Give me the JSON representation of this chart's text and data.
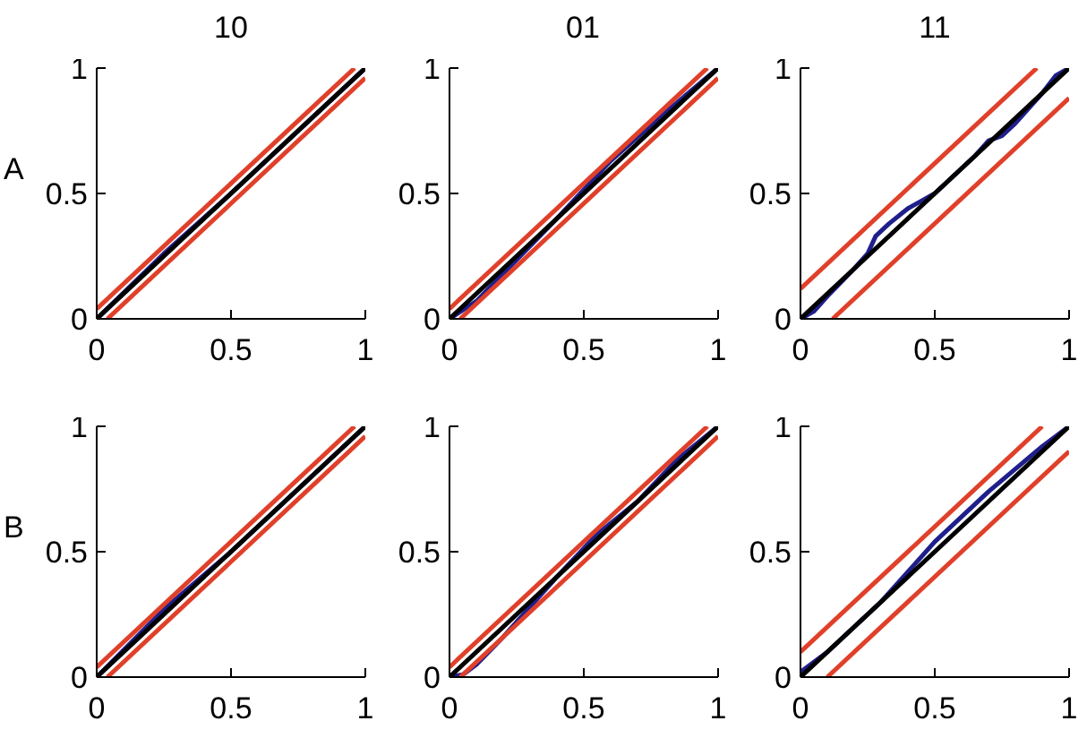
{
  "chart_data": [
    {
      "type": "line",
      "title": "10",
      "ylabel": "A",
      "xlim": [
        0,
        1
      ],
      "ylim": [
        0,
        1
      ],
      "xticks": [
        0,
        0.5,
        1
      ],
      "yticks": [
        0,
        0.5,
        1
      ],
      "grid": false,
      "marker": "none",
      "series": [
        {
          "color": "#1f1f8c",
          "x": [
            0,
            0.25,
            0.5,
            0.75,
            1
          ],
          "values": [
            0,
            0.26,
            0.5,
            0.75,
            1
          ]
        },
        {
          "color": "#e0402a",
          "x": [
            0,
            0.96
          ],
          "values": [
            0.04,
            1
          ]
        },
        {
          "color": "#e0402a",
          "x": [
            0.04,
            1
          ],
          "values": [
            0,
            0.96
          ]
        },
        {
          "color": "#000000",
          "x": [
            0,
            1
          ],
          "values": [
            0,
            1
          ]
        }
      ]
    },
    {
      "type": "line",
      "title": "01",
      "xlim": [
        0,
        1
      ],
      "ylim": [
        0,
        1
      ],
      "xticks": [
        0,
        0.5,
        1
      ],
      "yticks": [
        0,
        0.5,
        1
      ],
      "grid": false,
      "marker": "none",
      "series": [
        {
          "color": "#1f1f8c",
          "x": [
            0,
            0.1,
            0.2,
            0.4,
            0.6,
            0.8,
            1
          ],
          "values": [
            0,
            0.07,
            0.18,
            0.4,
            0.63,
            0.82,
            1
          ]
        },
        {
          "color": "#e0402a",
          "x": [
            0,
            0.96
          ],
          "values": [
            0.04,
            1
          ]
        },
        {
          "color": "#e0402a",
          "x": [
            0.04,
            1
          ],
          "values": [
            0,
            0.96
          ]
        },
        {
          "color": "#000000",
          "x": [
            0,
            1
          ],
          "values": [
            0,
            1
          ]
        }
      ]
    },
    {
      "type": "line",
      "title": "11",
      "xlim": [
        0,
        1
      ],
      "ylim": [
        0,
        1
      ],
      "xticks": [
        0,
        0.5,
        1
      ],
      "yticks": [
        0,
        0.5,
        1
      ],
      "grid": false,
      "marker": "none",
      "series": [
        {
          "color": "#1f1f8c",
          "x": [
            0,
            0.05,
            0.1,
            0.2,
            0.25,
            0.28,
            0.33,
            0.4,
            0.45,
            0.5,
            0.6,
            0.65,
            0.7,
            0.75,
            0.8,
            0.9,
            0.95,
            1
          ],
          "values": [
            0,
            0.03,
            0.09,
            0.2,
            0.26,
            0.33,
            0.38,
            0.44,
            0.47,
            0.5,
            0.6,
            0.65,
            0.71,
            0.73,
            0.78,
            0.9,
            0.97,
            1
          ]
        },
        {
          "color": "#e0402a",
          "x": [
            0,
            0.88
          ],
          "values": [
            0.12,
            1
          ]
        },
        {
          "color": "#e0402a",
          "x": [
            0.12,
            1
          ],
          "values": [
            0,
            0.88
          ]
        },
        {
          "color": "#000000",
          "x": [
            0,
            1
          ],
          "values": [
            0,
            1
          ]
        }
      ]
    },
    {
      "type": "line",
      "ylabel": "B",
      "xlim": [
        0,
        1
      ],
      "ylim": [
        0,
        1
      ],
      "xticks": [
        0,
        0.5,
        1
      ],
      "yticks": [
        0,
        0.5,
        1
      ],
      "grid": false,
      "marker": "none",
      "series": [
        {
          "color": "#1f1f8c",
          "x": [
            0,
            0.25,
            0.5,
            0.75,
            1
          ],
          "values": [
            0,
            0.27,
            0.5,
            0.75,
            1
          ]
        },
        {
          "color": "#e0402a",
          "x": [
            0,
            0.96
          ],
          "values": [
            0.04,
            1
          ]
        },
        {
          "color": "#e0402a",
          "x": [
            0.04,
            1
          ],
          "values": [
            0,
            0.96
          ]
        },
        {
          "color": "#000000",
          "x": [
            0,
            1
          ],
          "values": [
            0,
            1
          ]
        }
      ]
    },
    {
      "type": "line",
      "xlim": [
        0,
        1
      ],
      "ylim": [
        0,
        1
      ],
      "xticks": [
        0,
        0.5,
        1
      ],
      "yticks": [
        0,
        0.5,
        1
      ],
      "grid": false,
      "marker": "none",
      "series": [
        {
          "color": "#1f1f8c",
          "x": [
            0,
            0.05,
            0.1,
            0.2,
            0.3,
            0.4,
            0.55,
            0.7,
            0.85,
            1
          ],
          "values": [
            0,
            0.01,
            0.05,
            0.16,
            0.28,
            0.4,
            0.57,
            0.7,
            0.87,
            1
          ]
        },
        {
          "color": "#e0402a",
          "x": [
            0,
            0.96
          ],
          "values": [
            0.04,
            1
          ]
        },
        {
          "color": "#e0402a",
          "x": [
            0.04,
            1
          ],
          "values": [
            0,
            0.96
          ]
        },
        {
          "color": "#000000",
          "x": [
            0,
            1
          ],
          "values": [
            0,
            1
          ]
        }
      ]
    },
    {
      "type": "line",
      "xlim": [
        0,
        1
      ],
      "ylim": [
        0,
        1
      ],
      "xticks": [
        0,
        0.5,
        1
      ],
      "yticks": [
        0,
        0.5,
        1
      ],
      "grid": false,
      "marker": "none",
      "series": [
        {
          "color": "#1f1f8c",
          "x": [
            0,
            0.1,
            0.2,
            0.3,
            0.4,
            0.5,
            0.6,
            0.7,
            0.8,
            0.9,
            1
          ],
          "values": [
            0.02,
            0.1,
            0.2,
            0.3,
            0.42,
            0.54,
            0.64,
            0.74,
            0.83,
            0.92,
            1
          ]
        },
        {
          "color": "#e0402a",
          "x": [
            0,
            0.9
          ],
          "values": [
            0.1,
            1
          ]
        },
        {
          "color": "#e0402a",
          "x": [
            0.1,
            1
          ],
          "values": [
            0,
            0.9
          ]
        },
        {
          "color": "#000000",
          "x": [
            0,
            1
          ],
          "values": [
            0,
            1
          ]
        }
      ]
    }
  ]
}
